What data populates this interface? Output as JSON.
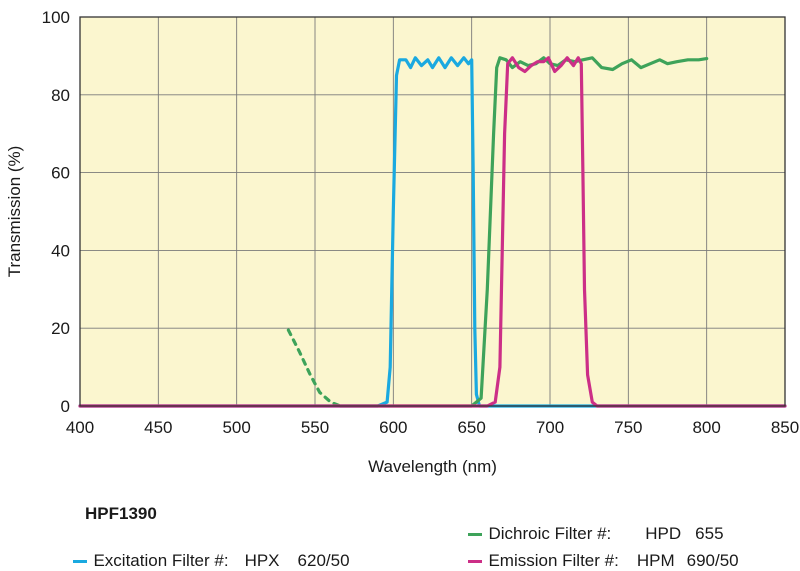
{
  "colors": {
    "plot_background": "#fbf6cf",
    "grid": "#7a7a7a",
    "excitation": "#1aa9e0",
    "dichroic": "#3ea35a",
    "emission": "#cc2f87"
  },
  "legend": {
    "title": "HPF1390",
    "entries": [
      {
        "label": "Excitation Filter #:",
        "code": "HPX",
        "value": "620/50"
      },
      {
        "label": "Dichroic Filter #:",
        "code": "HPD",
        "value": "655"
      },
      {
        "label": "Emission Filter #:",
        "code": "HPM",
        "value": "690/50"
      }
    ]
  },
  "chart_data": {
    "type": "line",
    "title": "",
    "xlabel": "Wavelength (nm)",
    "ylabel": "Transmission (%)",
    "xlim": [
      400,
      850
    ],
    "ylim": [
      0,
      100
    ],
    "x_ticks": [
      400,
      450,
      500,
      550,
      600,
      650,
      700,
      750,
      800,
      850
    ],
    "y_ticks": [
      0,
      20,
      40,
      60,
      80,
      100
    ],
    "grid": true,
    "legend_position": "bottom",
    "series": [
      {
        "key": "excitation",
        "points": [
          [
            400,
            0
          ],
          [
            590,
            0
          ],
          [
            596,
            1
          ],
          [
            598,
            10
          ],
          [
            600,
            50
          ],
          [
            602,
            85
          ],
          [
            604,
            89
          ],
          [
            608,
            89
          ],
          [
            611,
            87
          ],
          [
            614,
            89.5
          ],
          [
            618,
            87.5
          ],
          [
            622,
            89
          ],
          [
            625,
            87
          ],
          [
            629,
            89.5
          ],
          [
            633,
            87
          ],
          [
            637,
            89.5
          ],
          [
            641,
            87.5
          ],
          [
            645,
            89.5
          ],
          [
            648,
            88
          ],
          [
            650,
            89
          ],
          [
            651,
            60
          ],
          [
            652,
            20
          ],
          [
            653,
            3
          ],
          [
            655,
            0
          ],
          [
            850,
            0
          ]
        ]
      },
      {
        "key": "dichroic_dotted",
        "dashed": true,
        "points": [
          [
            533,
            19.5
          ],
          [
            540,
            14
          ],
          [
            547,
            8
          ],
          [
            553,
            3.5
          ],
          [
            560,
            1
          ],
          [
            566,
            0
          ]
        ]
      },
      {
        "key": "dichroic",
        "points": [
          [
            566,
            0
          ],
          [
            650,
            0
          ],
          [
            656,
            2
          ],
          [
            660,
            30
          ],
          [
            664,
            70
          ],
          [
            666,
            87
          ],
          [
            668,
            89.5
          ],
          [
            672,
            89
          ],
          [
            676,
            87
          ],
          [
            681,
            88.5
          ],
          [
            686,
            87.5
          ],
          [
            691,
            88
          ],
          [
            696,
            89.5
          ],
          [
            700,
            88
          ],
          [
            705,
            87.5
          ],
          [
            710,
            89
          ],
          [
            716,
            88.5
          ],
          [
            721,
            89
          ],
          [
            727,
            89.5
          ],
          [
            733,
            87
          ],
          [
            740,
            86.5
          ],
          [
            746,
            88
          ],
          [
            752,
            89
          ],
          [
            758,
            87
          ],
          [
            764,
            88
          ],
          [
            770,
            89
          ],
          [
            775,
            88
          ],
          [
            781,
            88.5
          ],
          [
            788,
            89
          ],
          [
            795,
            89
          ],
          [
            800,
            89.3
          ]
        ]
      },
      {
        "key": "emission",
        "points": [
          [
            400,
            0
          ],
          [
            660,
            0
          ],
          [
            665,
            1
          ],
          [
            668,
            10
          ],
          [
            671,
            70
          ],
          [
            673,
            88
          ],
          [
            676,
            89.5
          ],
          [
            680,
            87
          ],
          [
            684,
            86
          ],
          [
            688,
            87.5
          ],
          [
            692,
            88.5
          ],
          [
            696,
            88.5
          ],
          [
            699,
            89.5
          ],
          [
            703,
            86
          ],
          [
            707,
            87.5
          ],
          [
            711,
            89.5
          ],
          [
            715,
            87.5
          ],
          [
            718,
            89.5
          ],
          [
            720,
            88
          ],
          [
            721,
            60
          ],
          [
            722,
            30
          ],
          [
            724,
            8
          ],
          [
            727,
            1
          ],
          [
            730,
            0
          ],
          [
            850,
            0
          ]
        ]
      }
    ]
  }
}
